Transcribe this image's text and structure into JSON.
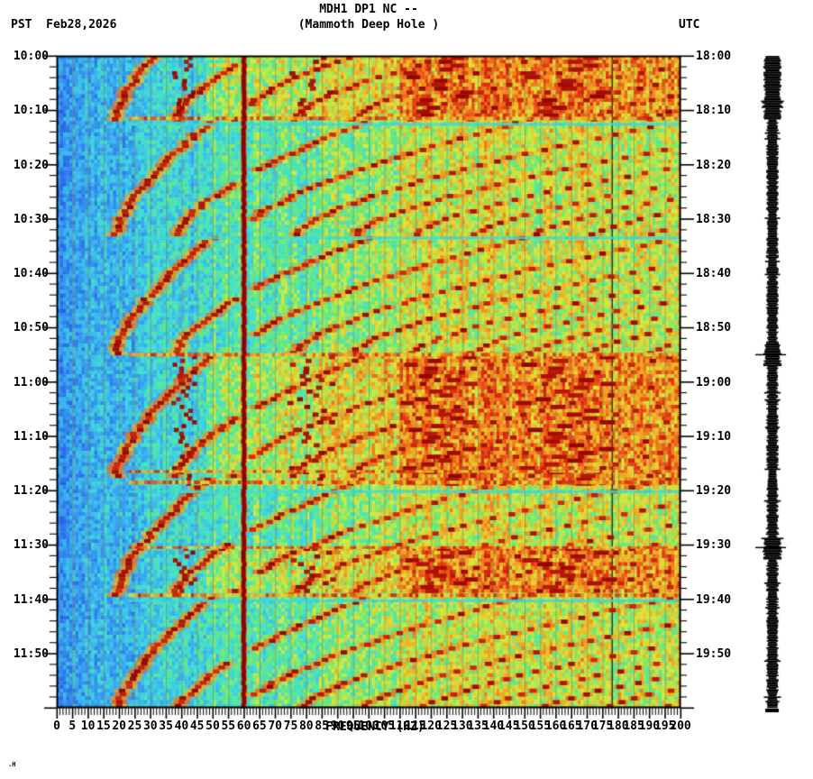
{
  "header": {
    "left_timezone": "PST",
    "date": "Feb28,2026",
    "title_line1": "MDH1 DP1 NC --",
    "title_line2": "(Mammoth Deep Hole )",
    "right_timezone": "UTC"
  },
  "watermark": ".H",
  "chart_data": {
    "type": "heatmap",
    "title": "MDH1 DP1 NC --",
    "subtitle": "(Mammoth Deep Hole )",
    "xlabel": "FREQUENCY (HZ)",
    "x_range_hz": [
      0,
      200
    ],
    "x_major_tick_step_hz": 5,
    "x_minor_tick_step_hz": 1,
    "x_tick_labels": [
      "0",
      "5",
      "10",
      "15",
      "20",
      "25",
      "30",
      "35",
      "40",
      "45",
      "50",
      "55",
      "60",
      "65",
      "70",
      "75",
      "80",
      "85",
      "90",
      "95",
      "100",
      "105",
      "110",
      "115",
      "120",
      "125",
      "130",
      "135",
      "140",
      "145",
      "150",
      "155",
      "160",
      "165",
      "170",
      "175",
      "180",
      "185",
      "190",
      "195",
      "200"
    ],
    "time_span_min": 120,
    "y_major_tick_step_min": 10,
    "y_minor_tick_step_min": 2,
    "left_axis": {
      "timezone": "PST",
      "tick_labels": [
        "10:00",
        "10:10",
        "10:20",
        "10:30",
        "10:40",
        "10:50",
        "11:00",
        "11:10",
        "11:20",
        "11:30",
        "11:40",
        "11:50"
      ]
    },
    "right_axis": {
      "timezone": "UTC",
      "tick_labels": [
        "18:00",
        "18:10",
        "18:20",
        "18:30",
        "18:40",
        "18:50",
        "19:00",
        "19:10",
        "19:20",
        "19:30",
        "19:40",
        "19:50"
      ]
    },
    "grid_step_hz": 5,
    "mains_hum_line_hz": 60,
    "dead_channel_line_hz": 178,
    "glide_cycles": {
      "boundaries_min": [
        -9.5,
        12,
        33.5,
        55,
        77.5,
        99.5,
        121.5
      ],
      "f0_start_hz": 50,
      "f0_end_hz": 19,
      "curve_power": 1.55,
      "max_harmonic": 10
    },
    "tremor_events": [
      {
        "start_min": -5,
        "end_min": 11.5
      },
      {
        "start_min": 55,
        "end_min": 79
      },
      {
        "start_min": 90.5,
        "end_min": 99
      }
    ],
    "tremor_fundamental_hz": 41,
    "stripes": [
      {
        "min": 11.5,
        "type": "hot",
        "h": 4
      },
      {
        "min": 12.6,
        "type": "cool",
        "h": 3
      },
      {
        "min": 33.5,
        "type": "cool",
        "h": 3
      },
      {
        "min": 55.0,
        "type": "hot",
        "h": 4
      },
      {
        "min": 76.5,
        "type": "hot",
        "h": 3
      },
      {
        "min": 78.5,
        "type": "hot",
        "h": 4
      },
      {
        "min": 80.2,
        "type": "cool",
        "h": 3
      },
      {
        "min": 90.5,
        "type": "hot",
        "h": 3
      },
      {
        "min": 99.3,
        "type": "hot",
        "h": 4
      },
      {
        "min": 100.3,
        "type": "cool",
        "h": 3
      }
    ],
    "colormap_stops": [
      [
        0.0,
        "#1828c8"
      ],
      [
        0.14,
        "#2866e8"
      ],
      [
        0.3,
        "#38aaf0"
      ],
      [
        0.44,
        "#3fe0d2"
      ],
      [
        0.54,
        "#66e878"
      ],
      [
        0.64,
        "#d8e83a"
      ],
      [
        0.74,
        "#f0a020"
      ],
      [
        0.84,
        "#e83410"
      ],
      [
        1.0,
        "#8b0000"
      ]
    ],
    "grid_color": "#82825a",
    "dead_line_color": "#3c3c28",
    "mains_line_color": "#8b0000",
    "frame_color": "#000000"
  },
  "seismogram": {
    "strip_color": "#000000",
    "event_marks_min": [
      55,
      90.5
    ]
  }
}
